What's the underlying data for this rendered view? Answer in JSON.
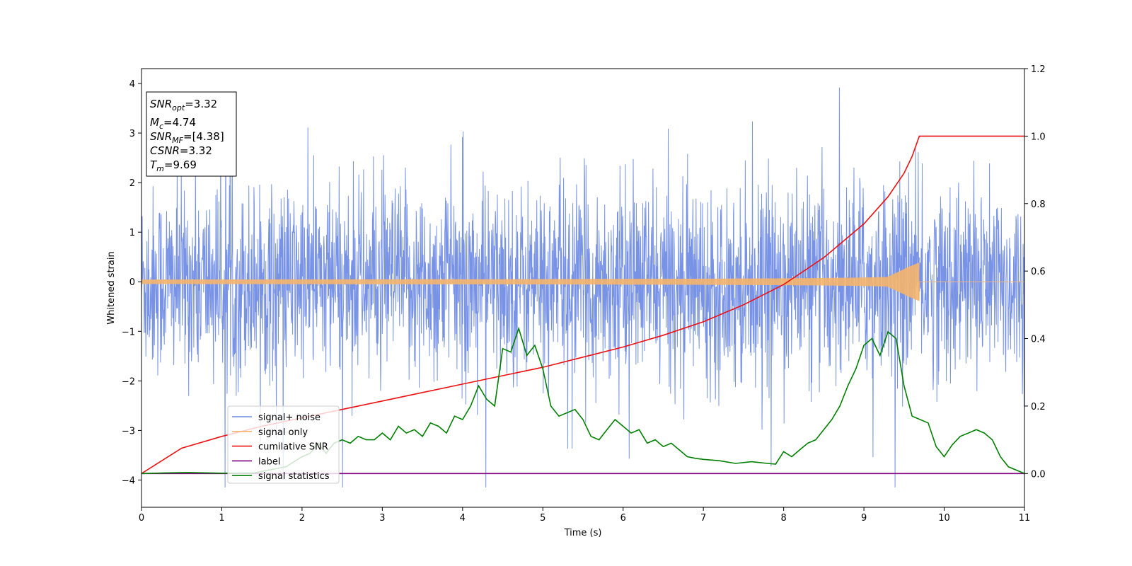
{
  "chart_data": {
    "type": "line",
    "xlabel": "Time (s)",
    "ylabel": "Whitened strain",
    "xlim": [
      0,
      11
    ],
    "ylim": [
      -4.55,
      4.3
    ],
    "y2lim": [
      -0.1,
      1.2
    ],
    "x_ticks": [
      "0",
      "1",
      "2",
      "3",
      "4",
      "5",
      "6",
      "7",
      "8",
      "9",
      "10",
      "11"
    ],
    "y_ticks": [
      "4",
      "3",
      "2",
      "1",
      "0",
      "−1",
      "−2",
      "−3",
      "−4"
    ],
    "y2_ticks": [
      "1.2",
      "1.0",
      "0.8",
      "0.6",
      "0.4",
      "0.2",
      "0.0"
    ],
    "grid": false,
    "legend_position": "lower-left",
    "annotation": {
      "snr_opt": {
        "base": "SNR",
        "sub": "opt",
        "value": "=3.32"
      },
      "mc": {
        "base": "M",
        "sub": "c",
        "value": "=4.74"
      },
      "snr_mf": {
        "base": "SNR",
        "sub": "MF",
        "value": "=[4.38]"
      },
      "csnr": {
        "base": "CSNR",
        "value": "=3.32"
      },
      "tm": {
        "base": "T",
        "sub": "m",
        "value": "=9.69"
      }
    },
    "series": [
      {
        "name": "signal+ noise",
        "color": "#6c8ae4",
        "axis": "left",
        "kind": "whitened strain noise, approx. unit variance, peaks up to 3.9 and down to -4.1"
      },
      {
        "name": "signal only",
        "color": "#f5b56b",
        "axis": "left",
        "chirp_end": 9.69,
        "peak_amplitude": 0.3
      },
      {
        "name": "cumilative SNR",
        "color": "#ee1111",
        "axis": "right",
        "x": [
          0,
          0.5,
          1,
          1.5,
          2,
          2.5,
          3,
          3.5,
          4,
          4.5,
          5,
          5.5,
          6,
          6.5,
          7,
          7.5,
          8,
          8.5,
          9,
          9.3,
          9.5,
          9.6,
          9.69,
          11
        ],
        "y": [
          0.0,
          0.075,
          0.11,
          0.14,
          0.165,
          0.19,
          0.215,
          0.24,
          0.265,
          0.29,
          0.315,
          0.345,
          0.375,
          0.41,
          0.45,
          0.5,
          0.56,
          0.64,
          0.74,
          0.82,
          0.89,
          0.94,
          1.0,
          1.0
        ]
      },
      {
        "name": "label",
        "color": "#800080",
        "axis": "right",
        "x": [
          0,
          11
        ],
        "y": [
          0,
          0
        ]
      },
      {
        "name": "signal statistics",
        "color": "#008000",
        "axis": "right",
        "x": [
          0,
          0.3,
          0.6,
          1.0,
          1.4,
          1.8,
          2.0,
          2.1,
          2.2,
          2.3,
          2.4,
          2.5,
          2.6,
          2.7,
          2.8,
          2.9,
          3.0,
          3.1,
          3.2,
          3.3,
          3.4,
          3.5,
          3.6,
          3.7,
          3.8,
          3.9,
          4.0,
          4.1,
          4.2,
          4.3,
          4.4,
          4.5,
          4.6,
          4.7,
          4.8,
          4.9,
          5.0,
          5.1,
          5.2,
          5.3,
          5.4,
          5.5,
          5.6,
          5.7,
          5.8,
          5.9,
          6.0,
          6.1,
          6.2,
          6.3,
          6.4,
          6.5,
          6.6,
          6.7,
          6.8,
          6.9,
          7.0,
          7.2,
          7.4,
          7.6,
          7.8,
          7.9,
          8.0,
          8.1,
          8.2,
          8.3,
          8.4,
          8.5,
          8.6,
          8.7,
          8.8,
          8.9,
          9.0,
          9.1,
          9.2,
          9.3,
          9.4,
          9.5,
          9.6,
          9.7,
          9.8,
          9.9,
          10.0,
          10.1,
          10.2,
          10.3,
          10.4,
          10.5,
          10.6,
          10.7,
          10.8,
          11.0
        ],
        "y": [
          0.0,
          0.002,
          0.003,
          0.001,
          0.002,
          0.02,
          0.05,
          0.06,
          0.09,
          0.06,
          0.09,
          0.1,
          0.09,
          0.11,
          0.1,
          0.1,
          0.12,
          0.1,
          0.14,
          0.12,
          0.13,
          0.11,
          0.15,
          0.14,
          0.12,
          0.17,
          0.16,
          0.2,
          0.26,
          0.22,
          0.2,
          0.37,
          0.36,
          0.43,
          0.35,
          0.38,
          0.31,
          0.2,
          0.17,
          0.18,
          0.19,
          0.16,
          0.11,
          0.1,
          0.13,
          0.16,
          0.14,
          0.12,
          0.13,
          0.09,
          0.1,
          0.08,
          0.09,
          0.07,
          0.05,
          0.045,
          0.042,
          0.038,
          0.03,
          0.035,
          0.03,
          0.028,
          0.065,
          0.05,
          0.07,
          0.09,
          0.1,
          0.13,
          0.16,
          0.2,
          0.26,
          0.31,
          0.38,
          0.4,
          0.35,
          0.42,
          0.4,
          0.26,
          0.17,
          0.16,
          0.15,
          0.08,
          0.05,
          0.085,
          0.11,
          0.12,
          0.13,
          0.12,
          0.1,
          0.05,
          0.02,
          0.0
        ]
      }
    ]
  }
}
